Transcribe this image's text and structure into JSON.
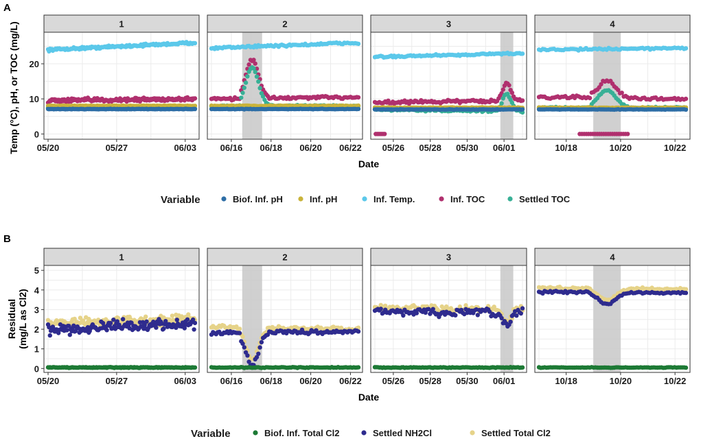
{
  "figure": {
    "panel_a_label": "A",
    "panel_b_label": "B"
  },
  "colors": {
    "biof_inf_ph": "#2e6ea6",
    "inf_ph": "#c9b33a",
    "inf_temp": "#5bc8ea",
    "inf_toc": "#b0306e",
    "settled_toc": "#38b096",
    "biof_total_cl2": "#1d7a35",
    "settled_nh2cl": "#2e2b8e",
    "settled_total_cl2": "#e6d389",
    "strip": "#d9d9d9",
    "shade": "#c8c8c8"
  },
  "chart_data": [
    {
      "type": "scatter",
      "title": "A",
      "xlabel": "Date",
      "ylabel": "Temp (°C), pH, or TOC (mg/L)",
      "ylim": [
        -1.5,
        29
      ],
      "yticks": [
        0,
        10,
        20
      ],
      "legend_title": "Variable",
      "legend": [
        "Biof. Inf. pH",
        "Inf. pH",
        "Inf. Temp.",
        "Inf. TOC",
        "Settled TOC"
      ],
      "facets": [
        {
          "name": "1",
          "xticks": [
            "05/20",
            "05/27",
            "06/03"
          ],
          "tick_days": [
            0,
            7,
            14
          ],
          "days": 15,
          "shade": null,
          "series": {
            "inf_temp": [
              24,
              26,
              0.5
            ],
            "inf_toc": [
              9.5,
              10,
              0.8
            ],
            "settled_toc": [
              7.5,
              7.5,
              0.4
            ],
            "inf_ph": [
              8,
              8,
              0.15
            ],
            "biof_inf_ph": [
              7.1,
              7.1,
              0.1
            ]
          }
        },
        {
          "name": "2",
          "xticks": [
            "06/16",
            "06/18",
            "06/20",
            "06/22"
          ],
          "tick_days": [
            1,
            3,
            5,
            7
          ],
          "days": 7.4,
          "shade": [
            1.55,
            2.55
          ],
          "series": {
            "inf_temp": [
              24.5,
              26,
              0.5
            ],
            "inf_toc": [
              10,
              10.5,
              0.6
            ],
            "settled_toc": [
              8,
              8,
              0.3
            ],
            "inf_ph": [
              8,
              8,
              0.15
            ],
            "biof_inf_ph": [
              7.1,
              7.1,
              0.1
            ]
          }
        },
        {
          "name": "3",
          "xticks": [
            "05/26",
            "05/28",
            "05/30",
            "06/01"
          ],
          "tick_days": [
            1,
            3,
            5,
            7
          ],
          "days": 8,
          "shade": [
            6.8,
            7.5
          ],
          "series": {
            "inf_temp": [
              22,
              23,
              0.4
            ],
            "inf_toc": [
              9,
              9.5,
              0.6
            ],
            "settled_toc": [
              7,
              6.5,
              0.5
            ],
            "inf_ph": [
              7.5,
              7.5,
              0.15
            ],
            "biof_inf_ph": [
              7,
              7,
              0.1
            ]
          }
        },
        {
          "name": "4",
          "xticks": [
            "10/18",
            "10/20",
            "10/22"
          ],
          "tick_days": [
            1,
            3,
            5
          ],
          "days": 5.4,
          "shade": [
            2,
            3
          ],
          "series": {
            "inf_temp": [
              24,
              24.5,
              0.4
            ],
            "inf_toc": [
              10.5,
              10,
              0.6
            ],
            "settled_toc": [
              7.5,
              7.5,
              0.3
            ],
            "inf_ph": [
              7.5,
              7.5,
              0.15
            ],
            "biof_inf_ph": [
              7,
              7,
              0.1
            ]
          }
        }
      ]
    },
    {
      "type": "scatter",
      "title": "B",
      "xlabel": "Date",
      "ylabel": "Residual (mg/L as Cl2)",
      "ylabel_lines": [
        "Residual",
        "(mg/L as Cl2)"
      ],
      "ylim": [
        -0.2,
        5.25
      ],
      "yticks": [
        0,
        1,
        2,
        3,
        4,
        5
      ],
      "legend_title": "Variable",
      "legend": [
        "Biof. Inf. Total Cl2",
        "Settled NH2Cl",
        "Settled Total Cl2"
      ],
      "facets": [
        {
          "name": "1",
          "xticks": [
            "05/20",
            "05/27",
            "06/03"
          ],
          "tick_days": [
            0,
            7,
            14
          ],
          "days": 15,
          "shade": null,
          "series": {
            "settled_total_cl2": [
              2.3,
              2.5,
              0.35
            ],
            "settled_nh2cl": [
              2.0,
              2.3,
              0.4
            ],
            "biof_total_cl2": [
              0.05,
              0.05,
              0.03
            ]
          }
        },
        {
          "name": "2",
          "xticks": [
            "06/16",
            "06/18",
            "06/20",
            "06/22"
          ],
          "tick_days": [
            1,
            3,
            5,
            7
          ],
          "days": 7.4,
          "shade": [
            1.55,
            2.55
          ],
          "series": {
            "settled_total_cl2": [
              2.1,
              2.0,
              0.15
            ],
            "settled_nh2cl": [
              1.8,
              1.9,
              0.15
            ],
            "biof_total_cl2": [
              0.05,
              0.05,
              0.03
            ]
          }
        },
        {
          "name": "3",
          "xticks": [
            "05/26",
            "05/28",
            "05/30",
            "06/01"
          ],
          "tick_days": [
            1,
            3,
            5,
            7
          ],
          "days": 8,
          "shade": [
            6.8,
            7.5
          ],
          "series": {
            "settled_total_cl2": [
              3.1,
              3.0,
              0.25
            ],
            "settled_nh2cl": [
              2.9,
              2.8,
              0.3
            ],
            "biof_total_cl2": [
              0.05,
              0.05,
              0.03
            ]
          }
        },
        {
          "name": "4",
          "xticks": [
            "10/18",
            "10/20",
            "10/22"
          ],
          "tick_days": [
            1,
            3,
            5
          ],
          "days": 5.4,
          "shade": [
            2,
            3
          ],
          "series": {
            "settled_total_cl2": [
              4.1,
              4.05,
              0.08
            ],
            "settled_nh2cl": [
              3.9,
              3.85,
              0.08
            ],
            "biof_total_cl2": [
              0.05,
              0.05,
              0.02
            ]
          }
        }
      ]
    }
  ]
}
